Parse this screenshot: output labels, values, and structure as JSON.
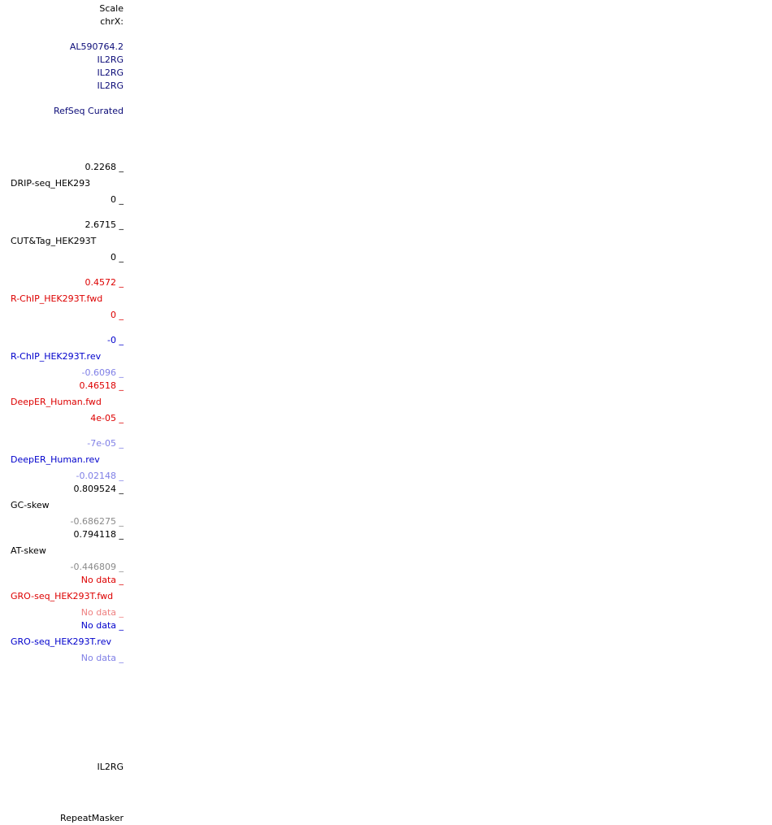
{
  "header": {
    "scale_label": "Scale",
    "chrom_label": "chrX:"
  },
  "genes": {
    "g1": "AL590764.2",
    "g2": "IL2RG",
    "g3": "IL2RG",
    "g4": "IL2RG",
    "track_name": "RefSeq Curated"
  },
  "tracks": {
    "drip": {
      "max": "0.2268 _",
      "name": "DRIP-seq_HEK293",
      "min": "0 _"
    },
    "cuttag": {
      "max": "2.6715 _",
      "name": "CUT&Tag_HEK293T",
      "min": "0 _"
    },
    "rchip_fwd": {
      "max": "0.4572 _",
      "name": "R-ChIP_HEK293T.fwd",
      "min": "0 _"
    },
    "rchip_rev": {
      "max": "-0 _",
      "name": "R-ChIP_HEK293T.rev",
      "min": "-0.6096 _"
    },
    "deeper_fwd": {
      "max": "0.46518 _",
      "name": "DeepER_Human.fwd",
      "min": "4e-05 _"
    },
    "deeper_rev": {
      "max": "-7e-05 _",
      "name": "DeepER_Human.rev",
      "min": "-0.02148 _"
    },
    "gc_skew": {
      "max": "0.809524 _",
      "name": "GC-skew",
      "min": "-0.686275 _"
    },
    "at_skew": {
      "max": "0.794118 _",
      "name": "AT-skew",
      "min": "-0.446809 _"
    },
    "gro_fwd": {
      "max": "No data _",
      "name": "GRO-seq_HEK293T.fwd",
      "min": "No data _"
    },
    "gro_rev": {
      "max": "No data _",
      "name": "GRO-seq_HEK293T.rev",
      "min": "No data _"
    }
  },
  "bottom": {
    "gene_label": "IL2RG",
    "repeatmasker_label": "RepeatMasker"
  },
  "colors": {
    "black": "#000000",
    "navy": "#0c0c78",
    "red": "#dd0000",
    "blue": "#0000cc",
    "light_blue": "#7f7fe6",
    "gray": "#8a8a8a",
    "pink": "#ee7f7f"
  }
}
